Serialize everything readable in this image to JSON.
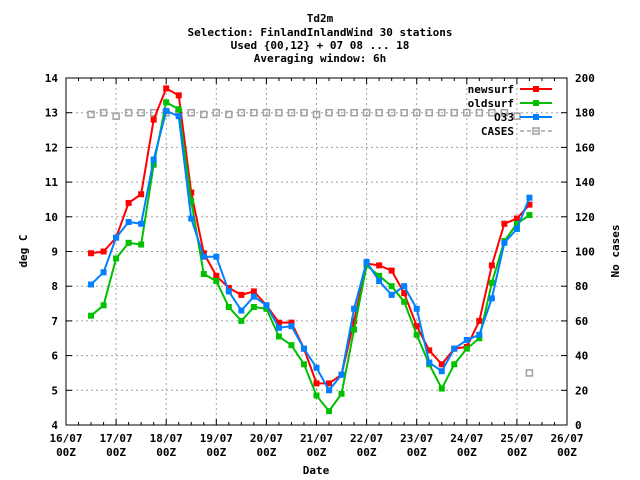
{
  "chart_data": {
    "type": "line",
    "title_lines": [
      "Td2m",
      "Selection: FinlandInlandWind     30 stations",
      "Used {00,12} + 07 08 ... 18",
      "Averaging window:  6h"
    ],
    "xlabel": "Date",
    "ylabel": "deg C",
    "y2label": "No cases",
    "xlim": [
      0,
      10
    ],
    "ylim": [
      4,
      14
    ],
    "y2lim": [
      0,
      200
    ],
    "yticks": [
      4,
      5,
      6,
      7,
      8,
      9,
      10,
      11,
      12,
      13,
      14
    ],
    "y2ticks": [
      0,
      20,
      40,
      60,
      80,
      100,
      120,
      140,
      160,
      180,
      200
    ],
    "xticks": [
      {
        "x": 0,
        "top": "16/07",
        "bottom": "00Z"
      },
      {
        "x": 1,
        "top": "17/07",
        "bottom": "00Z"
      },
      {
        "x": 2,
        "top": "18/07",
        "bottom": "00Z"
      },
      {
        "x": 3,
        "top": "19/07",
        "bottom": "00Z"
      },
      {
        "x": 4,
        "top": "20/07",
        "bottom": "00Z"
      },
      {
        "x": 5,
        "top": "21/07",
        "bottom": "00Z"
      },
      {
        "x": 6,
        "top": "22/07",
        "bottom": "00Z"
      },
      {
        "x": 7,
        "top": "23/07",
        "bottom": "00Z"
      },
      {
        "x": 8,
        "top": "24/07",
        "bottom": "00Z"
      },
      {
        "x": 9,
        "top": "25/07",
        "bottom": "00Z"
      },
      {
        "x": 10,
        "top": "26/07",
        "bottom": "00Z"
      }
    ],
    "grid": true,
    "legend_position": "top-right",
    "x": [
      0.5,
      0.75,
      1.0,
      1.25,
      1.5,
      1.75,
      2.0,
      2.25,
      2.5,
      2.75,
      3.0,
      3.25,
      3.5,
      3.75,
      4.0,
      4.25,
      4.5,
      4.75,
      5.0,
      5.25,
      5.5,
      5.75,
      6.0,
      6.25,
      6.5,
      6.75,
      7.0,
      7.25,
      7.5,
      7.75,
      8.0,
      8.25,
      8.5,
      8.75,
      9.0,
      9.25
    ],
    "series": [
      {
        "name": "newsurf",
        "color": "#ff0000",
        "marker": "square",
        "values": [
          8.95,
          9.0,
          9.4,
          10.4,
          10.65,
          12.8,
          13.7,
          13.5,
          10.7,
          8.95,
          8.3,
          7.95,
          7.75,
          7.85,
          7.45,
          6.95,
          6.95,
          6.2,
          5.2,
          5.2,
          5.45,
          7.0,
          8.65,
          8.6,
          8.45,
          7.8,
          6.85,
          6.15,
          5.75,
          6.2,
          6.25,
          7.0,
          8.6,
          9.8,
          9.95,
          10.35
        ]
      },
      {
        "name": "oldsurf",
        "color": "#00c000",
        "marker": "square",
        "values": [
          7.15,
          7.45,
          8.8,
          9.25,
          9.2,
          11.5,
          13.3,
          13.1,
          10.45,
          8.35,
          8.15,
          7.4,
          7.0,
          7.4,
          7.35,
          6.55,
          6.3,
          5.75,
          4.85,
          4.4,
          4.9,
          6.75,
          8.6,
          8.3,
          8.0,
          7.55,
          6.6,
          5.75,
          5.05,
          5.75,
          6.2,
          6.5,
          8.1,
          9.3,
          9.8,
          10.05
        ]
      },
      {
        "name": "O33",
        "color": "#0080ff",
        "marker": "square",
        "values": [
          8.05,
          8.4,
          9.4,
          9.85,
          9.8,
          11.65,
          13.05,
          12.9,
          9.95,
          8.85,
          8.85,
          7.85,
          7.3,
          7.7,
          7.45,
          6.8,
          6.85,
          6.2,
          5.65,
          5.0,
          5.45,
          7.35,
          8.7,
          8.15,
          7.75,
          8.0,
          7.35,
          5.8,
          5.55,
          6.2,
          6.45,
          6.6,
          7.65,
          9.25,
          9.65,
          10.55
        ]
      },
      {
        "name": "CASES",
        "color": "#a0a0a0",
        "marker": "open-square",
        "axis": "right",
        "values": [
          179,
          180,
          178,
          180,
          180,
          180,
          180,
          180,
          180,
          179,
          180,
          179,
          180,
          180,
          180,
          180,
          180,
          180,
          179,
          180,
          180,
          180,
          180,
          180,
          180,
          180,
          180,
          180,
          180,
          180,
          180,
          180,
          180,
          180,
          178,
          30
        ]
      }
    ]
  }
}
